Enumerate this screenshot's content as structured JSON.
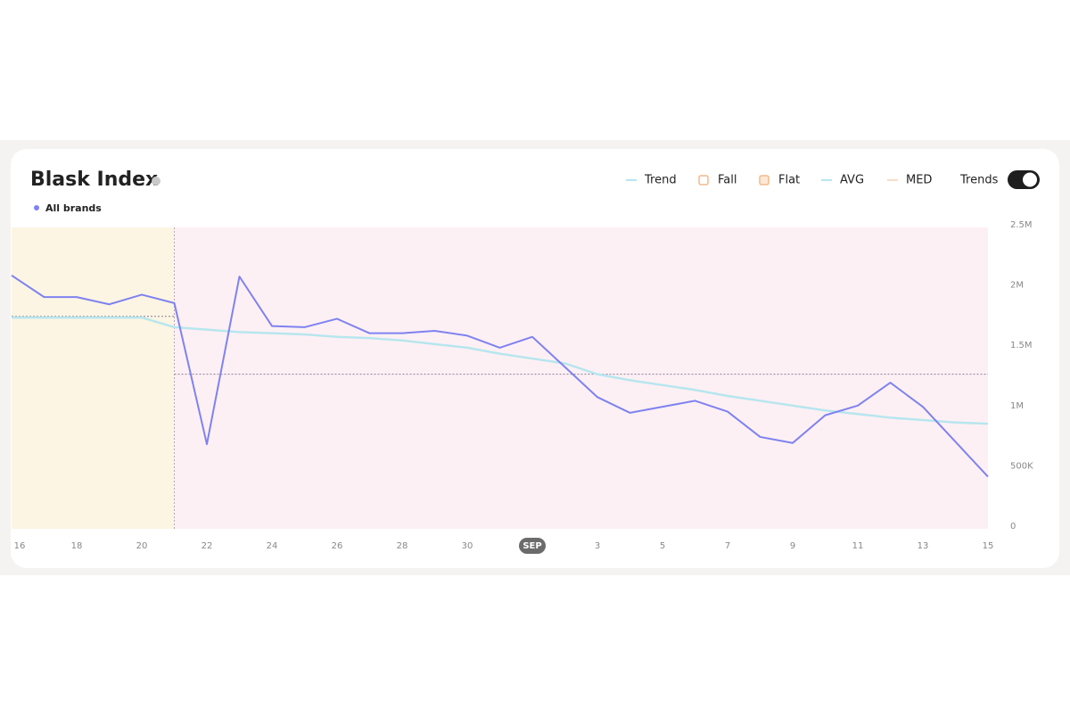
{
  "chart_data": {
    "type": "line",
    "title": "Blask Index",
    "categories": [
      "16",
      null,
      "18",
      null,
      "20",
      null,
      "22",
      null,
      "24",
      null,
      "26",
      null,
      "28",
      null,
      "30",
      null,
      "SEP",
      null,
      "3",
      null,
      "5",
      null,
      "7",
      null,
      "9",
      null,
      "11",
      null,
      "13",
      null,
      "15"
    ],
    "highlight_category": "SEP",
    "series": [
      {
        "name": "All brands",
        "color": "#7f82f0",
        "values": [
          2080000,
          1900000,
          1900000,
          1840000,
          1920000,
          1850000,
          680000,
          2070000,
          1660000,
          1650000,
          1720000,
          1600000,
          1600000,
          1620000,
          1580000,
          1480000,
          1570000,
          1320000,
          1070000,
          940000,
          990000,
          1040000,
          950000,
          740000,
          690000,
          920000,
          1000000,
          1190000,
          990000,
          700000,
          410000
        ]
      },
      {
        "name": "Trend",
        "color": "#b7e6ee",
        "values": [
          1730000,
          1730000,
          1730000,
          1730000,
          1730000,
          1650000,
          1630000,
          1610000,
          1600000,
          1590000,
          1570000,
          1560000,
          1540000,
          1510000,
          1480000,
          1430000,
          1390000,
          1350000,
          1260000,
          1210000,
          1170000,
          1130000,
          1080000,
          1040000,
          1000000,
          960000,
          930000,
          900000,
          880000,
          860000,
          850000
        ]
      }
    ],
    "periods": [
      {
        "start": 0,
        "end": 5,
        "color": "#fcf5e3",
        "avg": 1740000
      },
      {
        "start": 5,
        "end": 30,
        "color": "#fdf0f4",
        "avg": 1260000
      }
    ],
    "ylim": [
      0,
      2500000
    ],
    "yticks": [
      {
        "value": 0,
        "label": "0"
      },
      {
        "value": 500000,
        "label": "500K"
      },
      {
        "value": 1000000,
        "label": "1M"
      },
      {
        "value": 1500000,
        "label": "1.5M"
      },
      {
        "value": 2000000,
        "label": "2M"
      },
      {
        "value": 2500000,
        "label": "2.5M"
      }
    ],
    "legend": [
      {
        "name": "Trend",
        "color": "#b7e6ee",
        "symbol": "line"
      },
      {
        "name": "Fall",
        "color": "#f3b98a",
        "symbol": "square"
      },
      {
        "name": "Flat",
        "color": "#f3b98a",
        "symbol": "square"
      },
      {
        "name": "AVG",
        "color": "#b7e6ee",
        "symbol": "line"
      },
      {
        "name": "MED",
        "color": "#f8dcc9",
        "symbol": "line"
      }
    ],
    "toggle_label": "Trends"
  }
}
